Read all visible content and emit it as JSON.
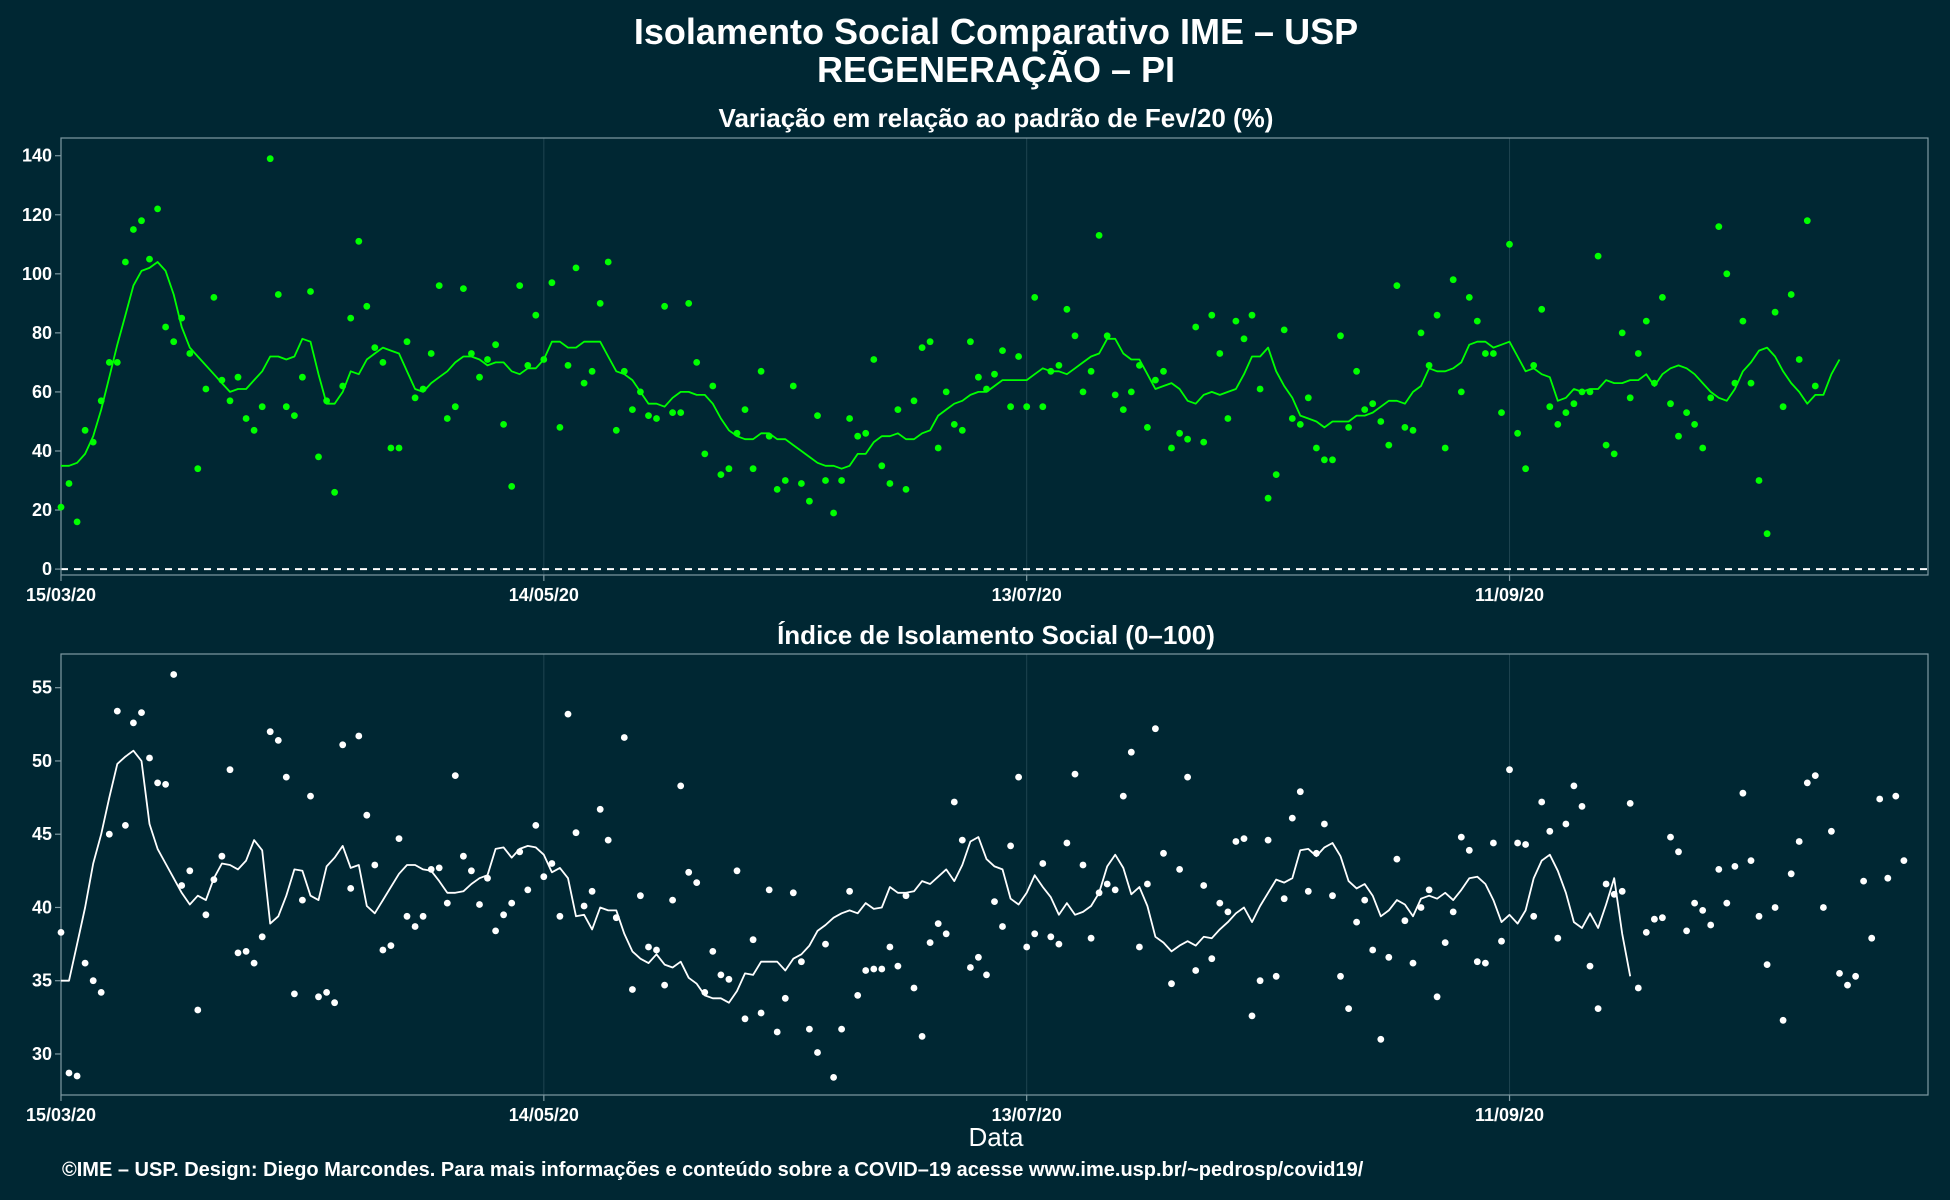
{
  "title": "Isolamento Social Comparativo IME – USP",
  "subtitle": "REGENERAÇÃO – PI",
  "caption": "©IME – USP. Design: Diego Marcondes. Para mais informações e conteúdo sobre a COVID–19 acesse www.ime.usp.br/~pedrosp/covid19/",
  "colors": {
    "background": "#002733",
    "panel1": "#00ff00",
    "panel2": "#ffffff"
  },
  "chart_data": [
    {
      "type": "scatter",
      "title": "Variação em relação ao padrão de Fev/20 (%)",
      "xlabel": "",
      "ylabel": "",
      "x_start": "15/03/20",
      "x_tick_labels": [
        "15/03/20",
        "14/05/20",
        "13/07/20",
        "11/09/20"
      ],
      "x_tick_days": [
        0,
        60,
        120,
        180
      ],
      "x_range_days": [
        0,
        232
      ],
      "ylim": [
        -2,
        146
      ],
      "y_ticks": [
        0,
        20,
        40,
        60,
        80,
        100,
        120,
        140
      ],
      "reference_line": 0,
      "series": [
        {
          "role": "daily",
          "values": [
            21,
            29,
            16,
            47,
            43,
            57,
            70,
            70,
            104,
            115,
            118,
            105,
            122,
            82,
            77,
            85,
            73,
            34,
            61,
            92,
            64,
            57,
            65,
            51,
            47,
            55,
            139,
            93,
            55,
            52,
            65,
            94,
            38,
            57,
            26,
            62,
            85,
            111,
            89,
            75,
            70,
            41,
            41,
            77,
            58,
            61,
            73,
            96,
            51,
            55,
            95,
            73,
            65,
            71,
            76,
            49,
            28,
            96,
            69,
            86,
            71,
            97,
            48,
            69,
            102,
            63,
            67,
            90,
            104,
            47,
            67,
            54,
            60,
            52,
            51,
            89,
            53,
            53,
            90,
            70,
            39,
            62,
            32,
            34,
            46,
            54,
            34,
            67,
            45,
            27,
            30,
            62,
            29,
            23,
            52,
            30,
            19,
            30,
            51,
            45,
            46,
            71,
            35,
            29,
            54,
            27,
            57,
            75,
            77,
            41,
            60,
            49,
            47,
            77,
            65,
            61,
            66,
            74,
            55,
            72,
            55,
            92,
            55,
            67,
            69,
            88,
            79,
            60,
            67,
            113,
            79,
            59,
            54,
            60,
            69,
            48,
            64,
            67,
            41,
            46,
            44,
            82,
            43,
            86,
            73,
            51,
            84,
            78,
            86,
            61,
            24,
            32,
            81,
            51,
            49,
            58,
            41,
            37,
            37,
            79,
            48,
            67,
            54,
            56,
            50,
            42,
            96,
            48,
            47,
            80,
            69,
            86,
            41,
            98,
            60,
            92,
            84,
            73,
            73,
            53,
            110,
            46,
            34,
            69,
            88,
            55,
            49,
            53,
            56,
            60,
            60,
            106,
            42,
            39,
            80,
            58,
            73,
            84,
            63,
            92,
            56,
            45,
            53,
            49,
            41,
            58,
            116,
            100,
            63,
            84,
            63,
            30,
            12,
            87,
            55,
            93,
            71,
            118,
            62
          ]
        },
        {
          "role": "moving-average",
          "values": [
            35,
            35,
            36,
            39,
            45,
            54,
            65,
            76,
            86,
            96,
            101,
            102,
            104,
            101,
            93,
            82,
            75,
            72,
            69,
            66,
            63,
            60,
            61,
            61,
            64,
            67,
            72,
            72,
            71,
            72,
            78,
            77,
            66,
            56,
            56,
            60,
            67,
            66,
            71,
            73,
            75,
            74,
            73,
            67,
            61,
            60,
            63,
            65,
            67,
            70,
            72,
            72,
            71,
            69,
            70,
            70,
            67,
            66,
            68,
            68,
            71,
            77,
            77,
            75,
            75,
            77,
            77,
            77,
            72,
            67,
            66,
            64,
            60,
            56,
            56,
            55,
            58,
            60,
            60,
            59,
            59,
            56,
            51,
            47,
            45,
            44,
            44,
            46,
            46,
            44,
            44,
            42,
            40,
            38,
            36,
            35,
            35,
            34,
            35,
            39,
            39,
            43,
            45,
            45,
            46,
            44,
            44,
            46,
            47,
            52,
            54,
            56,
            57,
            59,
            60,
            60,
            62,
            64,
            64,
            64,
            64,
            66,
            68,
            67,
            67,
            66,
            68,
            70,
            72,
            73,
            78,
            78,
            73,
            71,
            71,
            66,
            61,
            62,
            63,
            61,
            57,
            56,
            59,
            60,
            59,
            60,
            61,
            66,
            72,
            72,
            75,
            67,
            62,
            58,
            52,
            51,
            50,
            48,
            50,
            50,
            50,
            52,
            52,
            53,
            55,
            57,
            57,
            56,
            60,
            62,
            68,
            67,
            67,
            68,
            70,
            76,
            77,
            77,
            75,
            76,
            77,
            72,
            67,
            68,
            66,
            65,
            57,
            58,
            61,
            60,
            61,
            61,
            64,
            63,
            63,
            64,
            64,
            66,
            62,
            66,
            68,
            69,
            68,
            66,
            63,
            60,
            58,
            57,
            61,
            67,
            70,
            74,
            75,
            72,
            67,
            63,
            60,
            56,
            59,
            59,
            66,
            71
          ]
        }
      ]
    },
    {
      "type": "scatter",
      "title": "Índice de Isolamento Social (0–100)",
      "xlabel": "Data",
      "ylabel": "",
      "x_start": "15/03/20",
      "x_tick_labels": [
        "15/03/20",
        "14/05/20",
        "13/07/20",
        "11/09/20"
      ],
      "x_tick_days": [
        0,
        60,
        120,
        180
      ],
      "x_range_days": [
        0,
        232
      ],
      "ylim": [
        27.2,
        57.3
      ],
      "y_ticks": [
        30,
        35,
        40,
        45,
        50,
        55
      ],
      "series": [
        {
          "role": "daily",
          "values": [
            38.3,
            28.7,
            28.5,
            36.2,
            35.0,
            34.2,
            45.0,
            53.4,
            45.6,
            52.6,
            53.3,
            50.2,
            48.5,
            48.4,
            55.9,
            41.5,
            42.5,
            33.0,
            39.5,
            41.9,
            43.5,
            49.4,
            36.9,
            37.0,
            36.2,
            38.0,
            52.0,
            51.4,
            48.9,
            34.1,
            40.5,
            47.6,
            33.9,
            34.2,
            33.5,
            51.1,
            41.3,
            51.7,
            46.3,
            42.9,
            37.1,
            37.4,
            44.7,
            39.4,
            38.7,
            39.4,
            42.6,
            42.7,
            40.3,
            49.0,
            43.5,
            42.5,
            40.2,
            42.0,
            38.4,
            39.5,
            40.3,
            43.8,
            41.2,
            45.6,
            42.1,
            43.0,
            39.4,
            53.2,
            45.1,
            40.1,
            41.1,
            46.7,
            44.6,
            39.3,
            51.6,
            34.4,
            40.8,
            37.3,
            37.1,
            34.7,
            40.5,
            48.3,
            42.4,
            41.7,
            34.2,
            37.0,
            35.4,
            35.1,
            42.5,
            32.4,
            37.8,
            32.8,
            41.2,
            31.5,
            33.8,
            41.0,
            36.3,
            31.7,
            30.1,
            37.5,
            28.4,
            31.7,
            41.1,
            34.0,
            35.7,
            35.8,
            35.8,
            37.3,
            36.0,
            40.8,
            34.5,
            31.2,
            37.6,
            38.9,
            38.2,
            47.2,
            44.6,
            35.9,
            36.6,
            35.4,
            40.4,
            38.7,
            44.2,
            48.9,
            37.3,
            38.2,
            43.0,
            38.0,
            37.5,
            44.4,
            49.1,
            42.9,
            37.9,
            41.0,
            41.6,
            41.2,
            47.6,
            50.6,
            37.3,
            41.6,
            52.2,
            43.7,
            34.8,
            42.6,
            48.9,
            35.7,
            41.5,
            36.5,
            40.3,
            39.7,
            44.5,
            44.7,
            32.6,
            35.0,
            44.6,
            35.3,
            40.6,
            46.1,
            47.9,
            41.1,
            43.7,
            45.7,
            40.8,
            35.3,
            33.1,
            39.0,
            40.5,
            37.1,
            31.0,
            36.6,
            43.3,
            39.1,
            36.2,
            40.0,
            41.2,
            33.9,
            37.6,
            39.7,
            44.8,
            43.9,
            36.3,
            36.2,
            44.4,
            37.7,
            49.4,
            44.4,
            44.3,
            39.4,
            47.2,
            45.2,
            37.9,
            45.7,
            48.3,
            46.9,
            36.0,
            33.1,
            41.6,
            40.9,
            41.1,
            47.1,
            34.5,
            38.3,
            39.2,
            39.3,
            44.8,
            43.8,
            38.4,
            40.3,
            39.8,
            38.8,
            42.6,
            40.3,
            42.8,
            47.8,
            43.2,
            39.4,
            36.1,
            40.0,
            32.3,
            42.3,
            44.5,
            48.5,
            49.0,
            40.0,
            45.2,
            35.5,
            34.7,
            35.3,
            41.8,
            37.9,
            47.4,
            42.0,
            47.6,
            43.2
          ]
        },
        {
          "role": "moving-average",
          "values": [
            35.0,
            35.0,
            37.5,
            40.0,
            43.0,
            45.0,
            47.5,
            49.8,
            50.3,
            50.7,
            50.0,
            45.7,
            44.0,
            43.0,
            42.0,
            41.0,
            40.2,
            40.8,
            40.5,
            42.0,
            43.0,
            42.9,
            42.6,
            43.2,
            44.6,
            43.9,
            38.9,
            39.4,
            40.8,
            42.6,
            42.5,
            40.8,
            40.5,
            42.8,
            43.4,
            44.2,
            42.7,
            42.9,
            40.1,
            39.6,
            40.5,
            41.4,
            42.3,
            42.9,
            42.9,
            42.6,
            42.5,
            41.8,
            41.0,
            41.0,
            41.1,
            41.6,
            42.0,
            42.2,
            44.0,
            44.1,
            43.4,
            44.0,
            44.2,
            44.1,
            43.6,
            42.4,
            42.7,
            42.0,
            39.4,
            39.5,
            38.5,
            40.0,
            39.8,
            39.8,
            38.2,
            37.0,
            36.5,
            36.2,
            36.8,
            36.1,
            35.9,
            36.3,
            35.2,
            34.8,
            34.0,
            33.8,
            33.8,
            33.5,
            34.3,
            35.5,
            35.4,
            36.3,
            36.3,
            36.3,
            35.7,
            36.5,
            36.8,
            37.4,
            38.4,
            38.8,
            39.3,
            39.6,
            39.8,
            39.6,
            40.3,
            39.9,
            40.0,
            41.4,
            41.0,
            41.0,
            41.1,
            41.8,
            41.6,
            42.1,
            42.6,
            41.8,
            42.9,
            44.5,
            44.8,
            43.3,
            42.8,
            42.6,
            40.6,
            40.2,
            41.0,
            42.2,
            41.4,
            40.7,
            39.5,
            40.3,
            39.5,
            39.7,
            40.1,
            41.0,
            42.8,
            43.6,
            42.7,
            40.9,
            41.4,
            40.1,
            38.0,
            37.6,
            37.0,
            37.4,
            37.7,
            37.4,
            38.0,
            37.9,
            38.5,
            39.0,
            39.6,
            40.0,
            39.0,
            40.1,
            41.0,
            41.9,
            41.7,
            42.0,
            43.9,
            44.0,
            43.5,
            44.1,
            44.4,
            43.5,
            41.8,
            41.3,
            41.6,
            40.8,
            39.4,
            39.8,
            40.5,
            40.2,
            39.4,
            40.6,
            40.8,
            40.6,
            41.0,
            40.5,
            41.2,
            42.0,
            42.1,
            41.6,
            40.5,
            39.0,
            39.5,
            38.9,
            39.8,
            42.0,
            43.2,
            43.6,
            42.5,
            41.0,
            39.0,
            38.6,
            39.6,
            38.6,
            40.2,
            42.0,
            38.2,
            35.3
          ]
        }
      ]
    }
  ]
}
